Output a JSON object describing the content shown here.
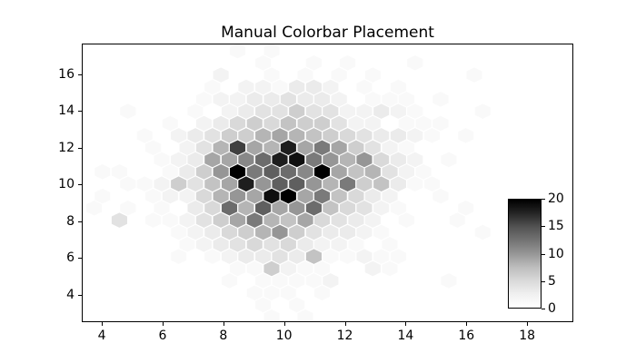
{
  "figure": {
    "background": "#ffffff",
    "text_color": "#000000"
  },
  "chart_data": {
    "type": "hexbin",
    "title": "Manual Colorbar Placement",
    "xlabel": "",
    "ylabel": "",
    "xlim": [
      3.34,
      19.52
    ],
    "ylim": [
      2.52,
      17.66
    ],
    "xticks": [
      4,
      6,
      8,
      10,
      12,
      14,
      16,
      18
    ],
    "yticks": [
      4,
      6,
      8,
      10,
      12,
      14,
      16
    ],
    "grid": false,
    "colormap": {
      "name": "Greys",
      "stops": [
        "#ffffff",
        "#f0f0f0",
        "#d9d9d9",
        "#bdbdbd",
        "#969696",
        "#737373",
        "#525252",
        "#252525",
        "#000000"
      ]
    },
    "colorbar": {
      "vmin": 0,
      "vmax": 20,
      "ticks": [
        0,
        5,
        10,
        15,
        20
      ],
      "orientation": "vertical",
      "location": "manually placed inside axes, lower right"
    },
    "hex_grid": {
      "cell_width": 0.556,
      "cell_height": 0.877,
      "row_step": 0.657
    },
    "cells": [
      [
        8.44,
        17.31,
        1
      ],
      [
        9.56,
        17.31,
        1
      ],
      [
        9.28,
        16.66,
        1
      ],
      [
        10.95,
        16.66,
        1
      ],
      [
        12.06,
        16.66,
        1
      ],
      [
        14.28,
        16.66,
        1
      ],
      [
        7.89,
        16.0,
        2
      ],
      [
        9.56,
        16.0,
        1
      ],
      [
        10.67,
        16.0,
        1
      ],
      [
        11.78,
        16.0,
        1
      ],
      [
        12.89,
        16.0,
        1
      ],
      [
        16.23,
        16.0,
        1
      ],
      [
        7.61,
        15.34,
        1
      ],
      [
        8.72,
        15.34,
        2
      ],
      [
        9.28,
        15.34,
        2
      ],
      [
        9.83,
        15.34,
        1
      ],
      [
        10.39,
        15.34,
        3
      ],
      [
        10.95,
        15.34,
        3
      ],
      [
        11.5,
        15.34,
        2
      ],
      [
        12.61,
        15.34,
        1
      ],
      [
        13.73,
        15.34,
        1
      ],
      [
        7.33,
        14.68,
        1
      ],
      [
        7.89,
        14.68,
        2
      ],
      [
        8.44,
        14.68,
        2
      ],
      [
        9.0,
        14.68,
        3
      ],
      [
        9.56,
        14.68,
        3
      ],
      [
        10.11,
        14.68,
        4
      ],
      [
        10.67,
        14.68,
        3
      ],
      [
        11.22,
        14.68,
        3
      ],
      [
        11.78,
        14.68,
        2
      ],
      [
        12.89,
        14.68,
        1
      ],
      [
        13.45,
        14.68,
        1
      ],
      [
        14.0,
        14.68,
        1
      ],
      [
        15.12,
        14.68,
        1
      ],
      [
        4.83,
        14.03,
        1
      ],
      [
        7.05,
        14.03,
        1
      ],
      [
        8.17,
        14.03,
        2
      ],
      [
        8.72,
        14.03,
        3
      ],
      [
        9.28,
        14.03,
        4
      ],
      [
        9.83,
        14.03,
        4
      ],
      [
        10.39,
        14.03,
        6
      ],
      [
        10.95,
        14.03,
        4
      ],
      [
        11.5,
        14.03,
        4
      ],
      [
        12.06,
        14.03,
        2
      ],
      [
        12.61,
        14.03,
        2
      ],
      [
        13.17,
        14.03,
        3
      ],
      [
        13.73,
        14.03,
        2
      ],
      [
        14.28,
        14.03,
        1
      ],
      [
        16.51,
        14.03,
        1
      ],
      [
        6.22,
        13.37,
        1
      ],
      [
        7.33,
        13.37,
        2
      ],
      [
        7.89,
        13.37,
        3
      ],
      [
        8.44,
        13.37,
        5
      ],
      [
        9.0,
        13.37,
        6
      ],
      [
        9.56,
        13.37,
        5
      ],
      [
        10.11,
        13.37,
        7
      ],
      [
        10.67,
        13.37,
        6
      ],
      [
        11.22,
        13.37,
        6
      ],
      [
        11.78,
        13.37,
        4
      ],
      [
        12.34,
        13.37,
        2
      ],
      [
        12.89,
        13.37,
        2
      ],
      [
        14.0,
        13.37,
        1
      ],
      [
        14.56,
        13.37,
        1
      ],
      [
        15.12,
        13.37,
        1
      ],
      [
        5.38,
        12.71,
        1
      ],
      [
        6.5,
        12.71,
        2
      ],
      [
        7.05,
        12.71,
        3
      ],
      [
        7.61,
        12.71,
        4
      ],
      [
        8.17,
        12.71,
        6
      ],
      [
        8.72,
        12.71,
        6
      ],
      [
        9.28,
        12.71,
        8
      ],
      [
        9.83,
        12.71,
        9
      ],
      [
        10.39,
        12.71,
        8
      ],
      [
        10.95,
        12.71,
        7
      ],
      [
        11.5,
        12.71,
        6
      ],
      [
        12.06,
        12.71,
        5
      ],
      [
        12.61,
        12.71,
        4
      ],
      [
        13.17,
        12.71,
        3
      ],
      [
        13.73,
        12.71,
        3
      ],
      [
        14.28,
        12.71,
        2
      ],
      [
        14.84,
        12.71,
        1
      ],
      [
        15.95,
        12.71,
        1
      ],
      [
        5.66,
        12.05,
        1
      ],
      [
        6.78,
        12.05,
        2
      ],
      [
        7.33,
        12.05,
        4
      ],
      [
        7.89,
        12.05,
        8
      ],
      [
        8.44,
        12.05,
        16
      ],
      [
        9.0,
        12.05,
        9
      ],
      [
        9.56,
        12.05,
        8
      ],
      [
        10.11,
        12.05,
        18
      ],
      [
        10.67,
        12.05,
        9
      ],
      [
        11.22,
        12.05,
        12
      ],
      [
        11.78,
        12.05,
        9
      ],
      [
        12.34,
        12.05,
        6
      ],
      [
        12.89,
        12.05,
        4
      ],
      [
        13.45,
        12.05,
        2
      ],
      [
        14.0,
        12.05,
        1
      ],
      [
        5.94,
        11.4,
        1
      ],
      [
        6.5,
        11.4,
        2
      ],
      [
        7.05,
        11.4,
        3
      ],
      [
        7.61,
        11.4,
        9
      ],
      [
        8.17,
        11.4,
        9
      ],
      [
        8.72,
        11.4,
        11
      ],
      [
        9.28,
        11.4,
        13
      ],
      [
        9.83,
        11.4,
        18
      ],
      [
        10.39,
        11.4,
        19
      ],
      [
        10.95,
        11.4,
        12
      ],
      [
        11.5,
        11.4,
        10
      ],
      [
        12.06,
        11.4,
        8
      ],
      [
        12.61,
        11.4,
        10
      ],
      [
        13.17,
        11.4,
        5
      ],
      [
        13.73,
        11.4,
        3
      ],
      [
        14.28,
        11.4,
        2
      ],
      [
        15.39,
        11.4,
        1
      ],
      [
        3.99,
        10.74,
        1
      ],
      [
        4.55,
        10.74,
        1
      ],
      [
        6.22,
        10.74,
        1
      ],
      [
        6.78,
        10.74,
        3
      ],
      [
        7.33,
        10.74,
        6
      ],
      [
        7.89,
        10.74,
        10
      ],
      [
        8.44,
        10.74,
        20
      ],
      [
        9.0,
        10.74,
        12
      ],
      [
        9.56,
        10.74,
        14
      ],
      [
        10.11,
        10.74,
        13
      ],
      [
        10.67,
        10.74,
        11
      ],
      [
        11.22,
        10.74,
        20
      ],
      [
        11.78,
        10.74,
        9
      ],
      [
        12.34,
        10.74,
        7
      ],
      [
        12.89,
        10.74,
        8
      ],
      [
        13.45,
        10.74,
        4
      ],
      [
        14.0,
        10.74,
        2
      ],
      [
        14.56,
        10.74,
        1
      ],
      [
        4.83,
        10.08,
        1
      ],
      [
        5.38,
        10.08,
        1
      ],
      [
        5.94,
        10.08,
        2
      ],
      [
        6.5,
        10.08,
        6
      ],
      [
        7.05,
        10.08,
        4
      ],
      [
        7.61,
        10.08,
        7
      ],
      [
        8.17,
        10.08,
        9
      ],
      [
        8.72,
        10.08,
        18
      ],
      [
        9.28,
        10.08,
        10
      ],
      [
        9.83,
        10.08,
        14
      ],
      [
        10.39,
        10.08,
        14
      ],
      [
        10.95,
        10.08,
        10
      ],
      [
        11.5,
        10.08,
        8
      ],
      [
        12.06,
        10.08,
        12
      ],
      [
        12.61,
        10.08,
        6
      ],
      [
        13.17,
        10.08,
        7
      ],
      [
        13.73,
        10.08,
        3
      ],
      [
        14.28,
        10.08,
        1
      ],
      [
        14.84,
        10.08,
        1
      ],
      [
        3.99,
        9.42,
        1
      ],
      [
        5.66,
        9.42,
        1
      ],
      [
        6.22,
        9.42,
        2
      ],
      [
        6.78,
        9.42,
        2
      ],
      [
        7.33,
        9.42,
        5
      ],
      [
        7.89,
        9.42,
        8
      ],
      [
        8.44,
        9.42,
        10
      ],
      [
        9.0,
        9.42,
        9
      ],
      [
        9.56,
        9.42,
        19
      ],
      [
        10.11,
        9.42,
        20
      ],
      [
        10.67,
        9.42,
        9
      ],
      [
        11.22,
        9.42,
        12
      ],
      [
        11.78,
        9.42,
        7
      ],
      [
        12.34,
        9.42,
        5
      ],
      [
        12.89,
        9.42,
        3
      ],
      [
        13.45,
        9.42,
        2
      ],
      [
        15.12,
        9.42,
        1
      ],
      [
        3.72,
        8.77,
        1
      ],
      [
        4.83,
        8.77,
        1
      ],
      [
        5.94,
        8.77,
        1
      ],
      [
        7.05,
        8.77,
        3
      ],
      [
        7.61,
        8.77,
        5
      ],
      [
        8.17,
        8.77,
        13
      ],
      [
        8.72,
        8.77,
        8
      ],
      [
        9.28,
        8.77,
        14
      ],
      [
        9.83,
        8.77,
        9
      ],
      [
        10.39,
        8.77,
        10
      ],
      [
        10.95,
        8.77,
        13
      ],
      [
        11.5,
        8.77,
        7
      ],
      [
        12.06,
        8.77,
        5
      ],
      [
        12.61,
        8.77,
        4
      ],
      [
        13.17,
        8.77,
        2
      ],
      [
        13.73,
        8.77,
        1
      ],
      [
        15.95,
        8.77,
        1
      ],
      [
        4.55,
        8.11,
        4
      ],
      [
        5.66,
        8.11,
        1
      ],
      [
        6.22,
        8.11,
        1
      ],
      [
        6.78,
        8.11,
        2
      ],
      [
        7.33,
        8.11,
        4
      ],
      [
        7.89,
        8.11,
        6
      ],
      [
        8.44,
        8.11,
        9
      ],
      [
        9.0,
        8.11,
        12
      ],
      [
        9.56,
        8.11,
        8
      ],
      [
        10.11,
        8.11,
        7
      ],
      [
        10.67,
        8.11,
        9
      ],
      [
        11.22,
        8.11,
        5
      ],
      [
        11.78,
        8.11,
        4
      ],
      [
        12.34,
        8.11,
        3
      ],
      [
        12.89,
        8.11,
        2
      ],
      [
        14.0,
        8.11,
        1
      ],
      [
        15.67,
        8.11,
        1
      ],
      [
        6.5,
        7.45,
        1
      ],
      [
        7.05,
        7.45,
        2
      ],
      [
        7.61,
        7.45,
        3
      ],
      [
        8.17,
        7.45,
        5
      ],
      [
        8.72,
        7.45,
        6
      ],
      [
        9.28,
        7.45,
        8
      ],
      [
        9.83,
        7.45,
        10
      ],
      [
        10.39,
        7.45,
        6
      ],
      [
        10.95,
        7.45,
        4
      ],
      [
        11.5,
        7.45,
        3
      ],
      [
        12.06,
        7.45,
        3
      ],
      [
        12.61,
        7.45,
        2
      ],
      [
        13.17,
        7.45,
        1
      ],
      [
        16.51,
        7.45,
        1
      ],
      [
        6.78,
        6.79,
        1
      ],
      [
        7.33,
        6.79,
        2
      ],
      [
        7.89,
        6.79,
        3
      ],
      [
        8.44,
        6.79,
        4
      ],
      [
        9.0,
        6.79,
        5
      ],
      [
        9.56,
        6.79,
        4
      ],
      [
        10.11,
        6.79,
        5
      ],
      [
        10.67,
        6.79,
        3
      ],
      [
        11.22,
        6.79,
        2
      ],
      [
        11.78,
        6.79,
        2
      ],
      [
        12.34,
        6.79,
        1
      ],
      [
        13.45,
        6.79,
        1
      ],
      [
        6.5,
        6.14,
        1
      ],
      [
        7.61,
        6.14,
        1
      ],
      [
        8.17,
        6.14,
        2
      ],
      [
        8.72,
        6.14,
        3
      ],
      [
        9.28,
        6.14,
        3
      ],
      [
        9.83,
        6.14,
        4
      ],
      [
        10.39,
        6.14,
        3
      ],
      [
        10.95,
        6.14,
        7
      ],
      [
        11.5,
        6.14,
        1
      ],
      [
        12.06,
        6.14,
        1
      ],
      [
        12.61,
        6.14,
        2
      ],
      [
        13.17,
        6.14,
        1
      ],
      [
        13.73,
        6.14,
        1
      ],
      [
        8.44,
        5.48,
        1
      ],
      [
        9.0,
        5.48,
        1
      ],
      [
        9.56,
        5.48,
        6
      ],
      [
        10.11,
        5.48,
        2
      ],
      [
        10.67,
        5.48,
        1
      ],
      [
        11.22,
        5.48,
        1
      ],
      [
        12.89,
        5.48,
        2
      ],
      [
        13.45,
        5.48,
        1
      ],
      [
        8.17,
        4.82,
        1
      ],
      [
        9.28,
        4.82,
        1
      ],
      [
        9.83,
        4.82,
        1
      ],
      [
        10.39,
        4.82,
        1
      ],
      [
        10.95,
        4.82,
        1
      ],
      [
        11.5,
        4.82,
        2
      ],
      [
        15.39,
        4.82,
        1
      ],
      [
        9.0,
        4.16,
        1
      ],
      [
        9.56,
        4.16,
        1
      ],
      [
        10.11,
        4.16,
        1
      ],
      [
        11.22,
        4.16,
        1
      ],
      [
        9.28,
        3.51,
        1
      ],
      [
        10.39,
        3.51,
        1
      ],
      [
        9.56,
        2.85,
        1
      ],
      [
        10.67,
        2.85,
        1
      ]
    ]
  }
}
